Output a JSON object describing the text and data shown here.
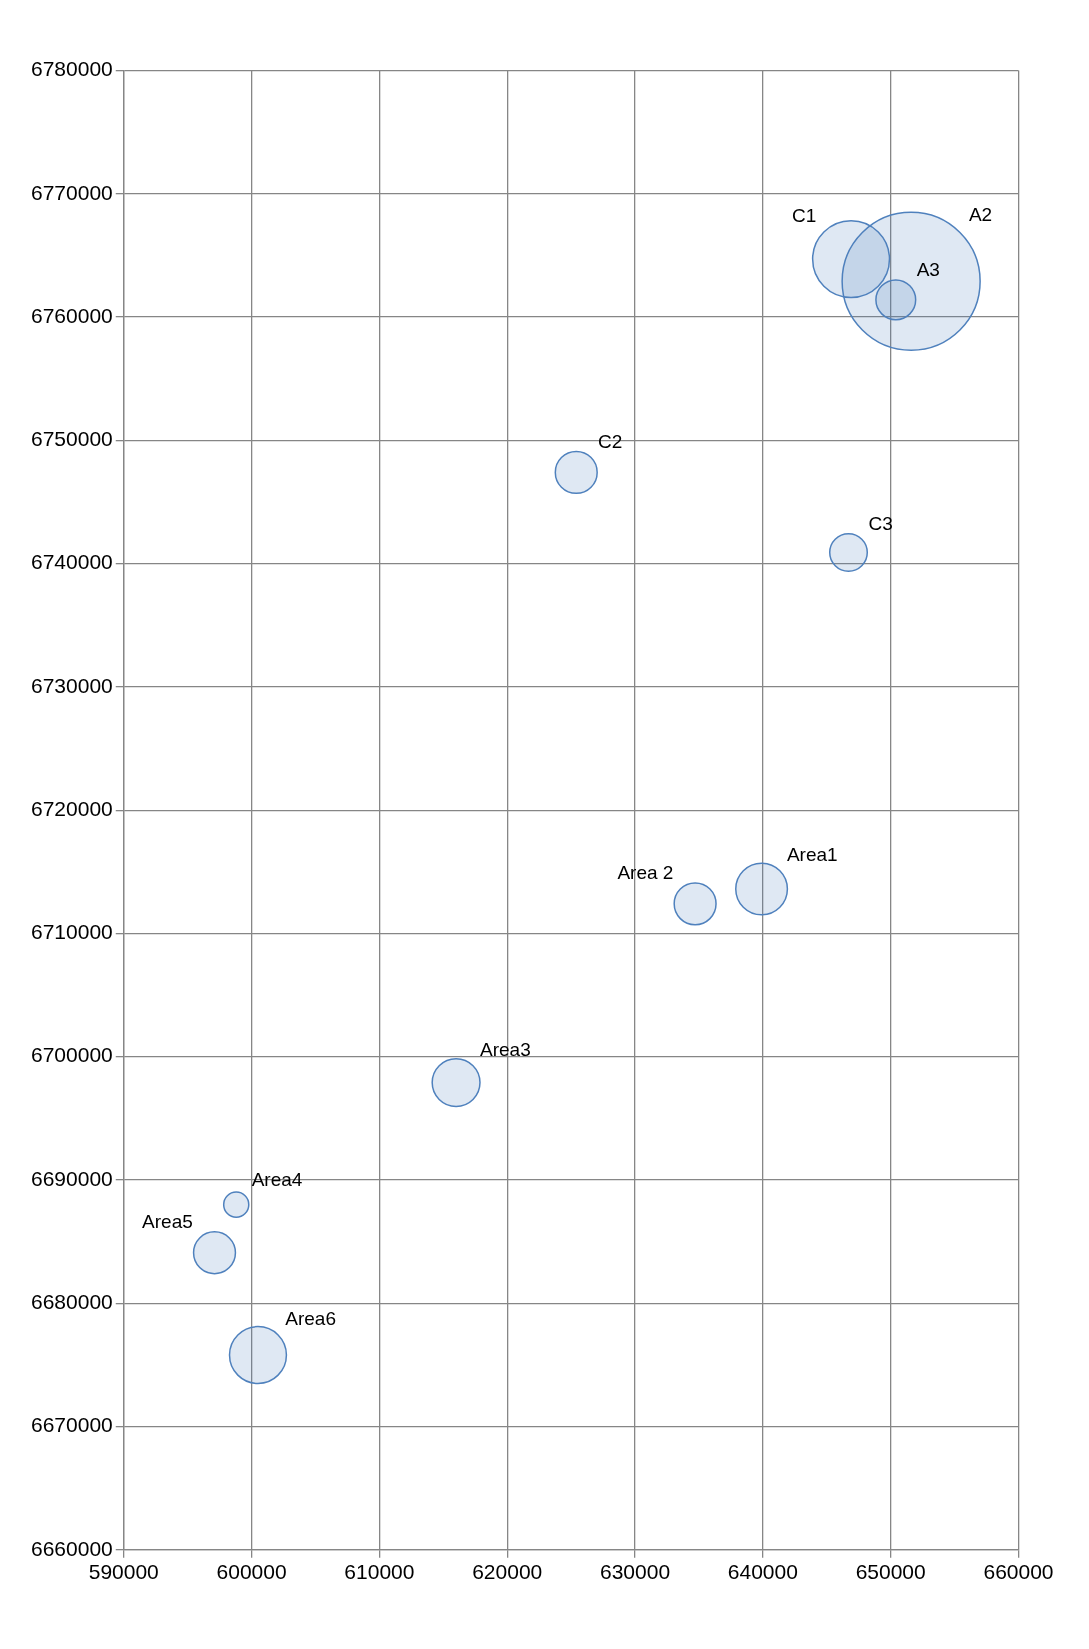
{
  "chart_data": {
    "type": "bubble",
    "xlim": [
      590000,
      660000
    ],
    "xticks": [
      590000,
      600000,
      610000,
      620000,
      630000,
      640000,
      650000,
      660000
    ],
    "ylim": [
      6660000,
      6780000
    ],
    "yticks": [
      6660000,
      6670000,
      6680000,
      6690000,
      6700000,
      6710000,
      6720000,
      6730000,
      6740000,
      6750000,
      6760000,
      6770000,
      6780000
    ],
    "grid": true,
    "legend": false,
    "series": [
      {
        "name": "C1",
        "color": "#4f81bd",
        "x": [
          646900
        ],
        "values": [
          6764700
        ],
        "sizes": [
          0.31
        ]
      },
      {
        "name": "A2",
        "color": "#4f81bd",
        "x": [
          651600
        ],
        "values": [
          6762900
        ],
        "sizes": [
          1
        ]
      },
      {
        "name": "A3",
        "color": "#4f81bd",
        "x": [
          650400
        ],
        "values": [
          6761400
        ],
        "sizes": [
          0.083
        ]
      },
      {
        "name": "C2",
        "color": "#4f81bd",
        "x": [
          625400
        ],
        "values": [
          6747400
        ],
        "sizes": [
          0.092
        ]
      },
      {
        "name": "C3",
        "color": "#4f81bd",
        "x": [
          646700
        ],
        "values": [
          6740900
        ],
        "sizes": [
          0.074
        ]
      },
      {
        "name": "Area 2",
        "color": "#4f81bd",
        "x": [
          634700
        ],
        "values": [
          6712400
        ],
        "sizes": [
          0.092
        ]
      },
      {
        "name": "Area1",
        "color": "#4f81bd",
        "x": [
          639900
        ],
        "values": [
          6713600
        ],
        "sizes": [
          0.14
        ]
      },
      {
        "name": "Area3",
        "color": "#4f81bd",
        "x": [
          616000
        ],
        "values": [
          6697900
        ],
        "sizes": [
          0.12
        ]
      },
      {
        "name": "Area4",
        "color": "#4f81bd",
        "x": [
          598800
        ],
        "values": [
          6688000
        ],
        "sizes": [
          0.033
        ]
      },
      {
        "name": "Area5",
        "color": "#4f81bd",
        "x": [
          597100
        ],
        "values": [
          6684100
        ],
        "sizes": [
          0.092
        ]
      },
      {
        "name": "Area6",
        "color": "#4f81bd",
        "x": [
          600500
        ],
        "values": [
          6675800
        ],
        "sizes": [
          0.17
        ]
      }
    ]
  }
}
